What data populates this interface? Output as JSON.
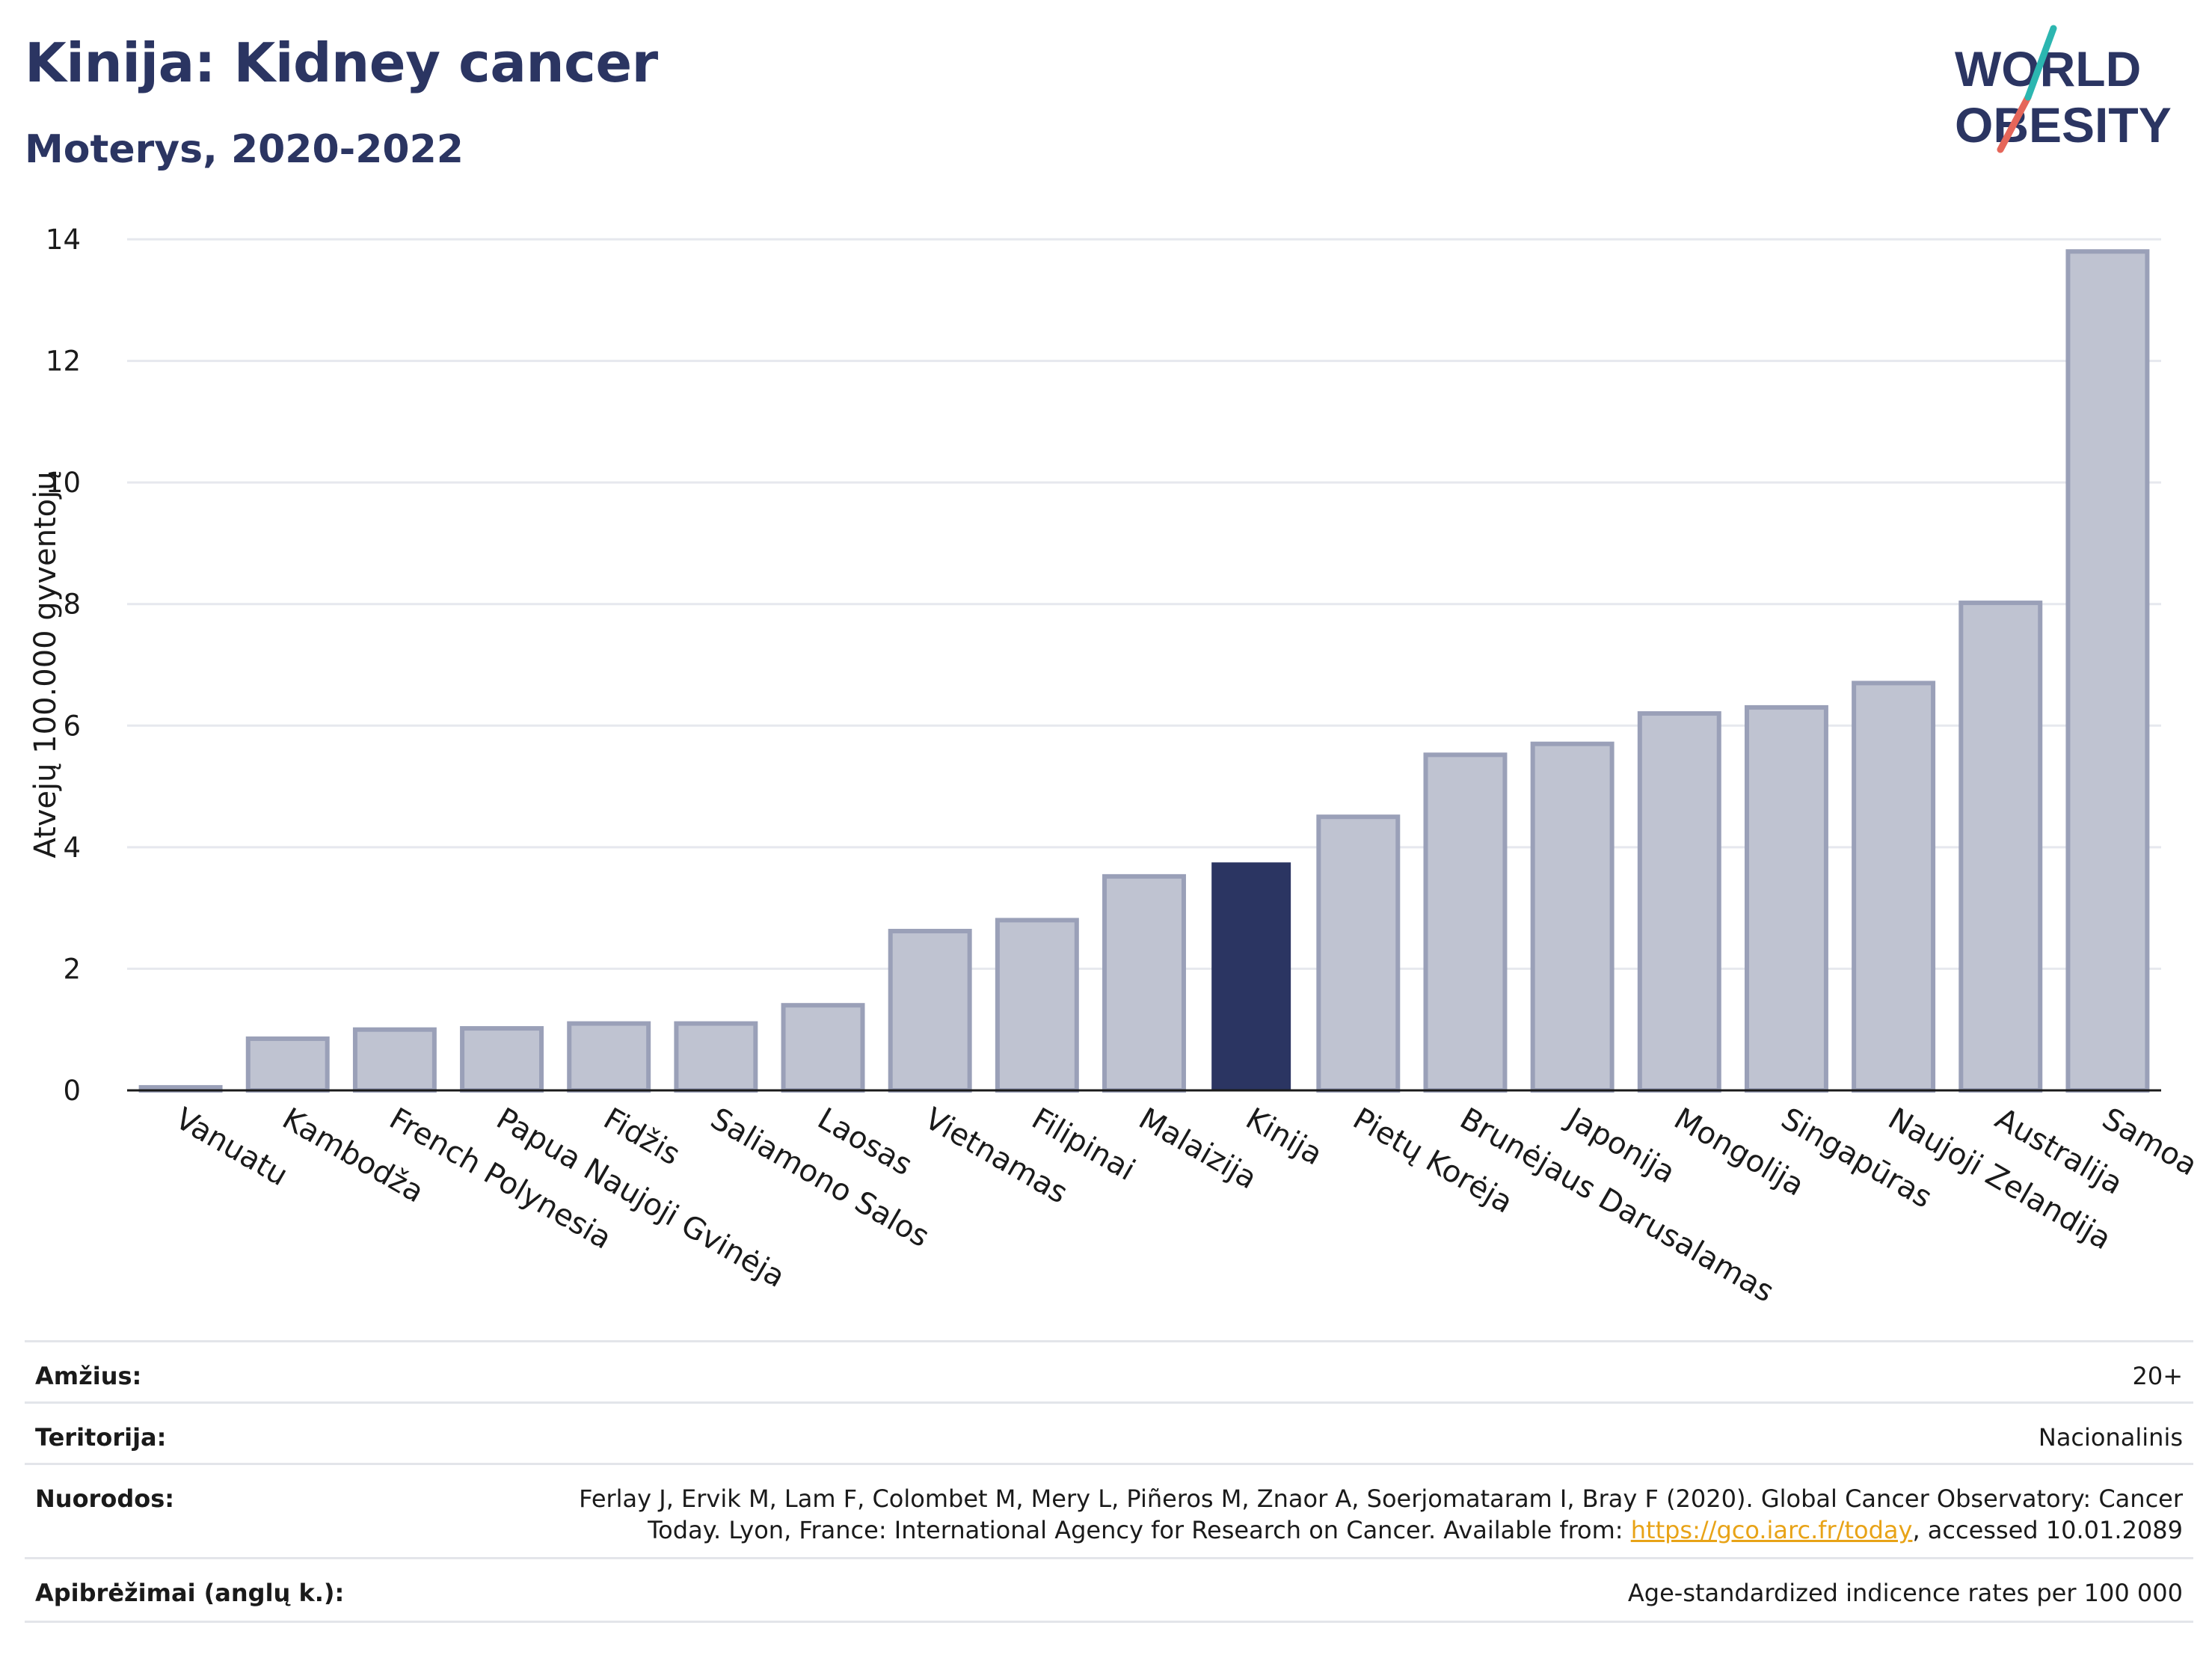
{
  "header": {
    "title": "Kinija: Kidney cancer",
    "subtitle": "Moterys, 2020-2022"
  },
  "logo": {
    "line1": "WORLD",
    "line2": "OBESITY",
    "accent_teal": "#2cb6b0",
    "accent_coral": "#e5665a",
    "text_color": "#2b3562"
  },
  "chart_data": {
    "type": "bar",
    "ylabel": "Atvejų 100.000 gyventojų",
    "ylim": [
      0,
      14
    ],
    "yticks": [
      0,
      2,
      4,
      6,
      8,
      10,
      12,
      14
    ],
    "grid": true,
    "highlight": "Kinija",
    "colors": {
      "bar": "#bfc3d1",
      "bar_edge": "#9aa0b8",
      "highlight": "#2b3562"
    },
    "categories": [
      "Vanuatu",
      "Kambodža",
      "French Polynesia",
      "Papua Naujoji Gvinėja",
      "Fidžis",
      "Saliamono Salos",
      "Laosas",
      "Vietnamas",
      "Filipinai",
      "Malaizija",
      "Kinija",
      "Pietų Korėja",
      "Brunėjaus Darusalamas",
      "Japonija",
      "Mongolija",
      "Singapūras",
      "Naujoji Zelandija",
      "Australija",
      "Samoa"
    ],
    "values": [
      0.05,
      0.85,
      1.0,
      1.02,
      1.1,
      1.1,
      1.4,
      2.62,
      2.8,
      3.52,
      3.75,
      4.5,
      5.52,
      5.7,
      6.2,
      6.3,
      6.7,
      8.02,
      13.8
    ]
  },
  "meta": {
    "age_label": "Amžius:",
    "age_value": "20+",
    "territory_label": "Teritorija:",
    "territory_value": "Nacionalinis",
    "refs_label": "Nuorodos:",
    "refs_line1": "Ferlay J, Ervik M, Lam F, Colombet M, Mery L, Piñeros M, Znaor A, Soerjomataram I, Bray F (2020). Global Cancer Observatory: Cancer",
    "refs_line2_pre": "Today. Lyon, France: International Agency for Research on Cancer. Available from: ",
    "refs_link": "https://gco.iarc.fr/today",
    "refs_line2_post": ", accessed 10.01.2089",
    "defs_label": "Apibrėžimai (anglų k.):",
    "defs_value": "Age-standardized indicence rates per 100 000"
  }
}
